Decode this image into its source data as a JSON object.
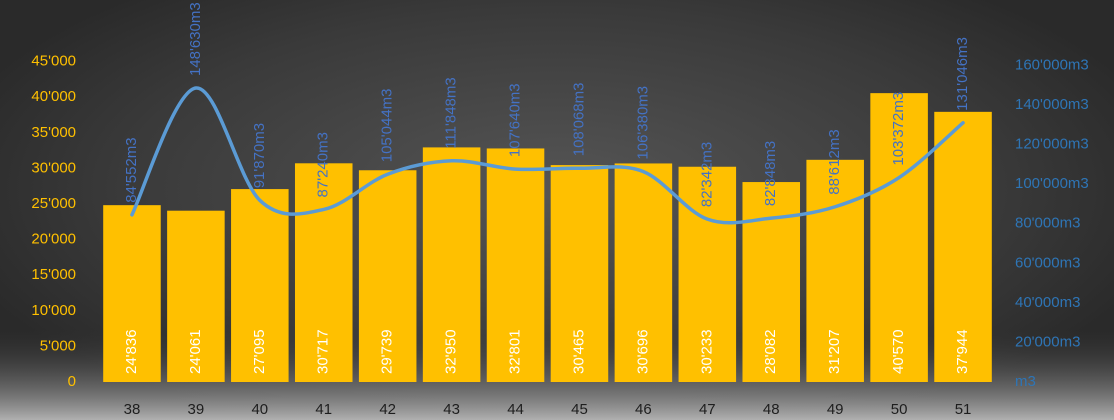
{
  "chart_data": {
    "type": "bar-line",
    "categories": [
      "38",
      "39",
      "40",
      "41",
      "42",
      "43",
      "44",
      "45",
      "46",
      "47",
      "48",
      "49",
      "50",
      "51"
    ],
    "series": [
      {
        "type": "bar",
        "color": "#ffc000",
        "axis": "y",
        "values": [
          24836,
          24061,
          27095,
          30717,
          29739,
          32950,
          32801,
          30465,
          30696,
          30233,
          28082,
          31207,
          40570,
          37944
        ],
        "value_labels": [
          "24'836",
          "24'061",
          "27'095",
          "30'717",
          "29'739",
          "32'950",
          "32'801",
          "30'465",
          "30'696",
          "30'233",
          "28'082",
          "31'207",
          "40'570",
          "37'944"
        ]
      },
      {
        "type": "line",
        "color": "#5b9bd5",
        "axis": "y2",
        "values": [
          84552,
          148630,
          91870,
          87240,
          105044,
          111848,
          107640,
          108068,
          106380,
          82342,
          82848,
          88612,
          103372,
          131046
        ],
        "value_labels": [
          "84'552m3",
          "148'630m3",
          "91'870m3",
          "87'240m3",
          "105'044m3",
          "111'848m3",
          "107'640m3",
          "108'068m3",
          "106'380m3",
          "82'342m3",
          "82'848m3",
          "88'612m3",
          "103'372m3",
          "131'046m3"
        ]
      }
    ],
    "ylim": [
      0,
      50000
    ],
    "yticks": [
      0,
      {
        "value": 5000,
        "label": "5'000"
      },
      {
        "value": 10000,
        "label": "10'000"
      },
      {
        "value": 15000,
        "label": "15'000"
      },
      {
        "value": 20000,
        "label": "20'000"
      },
      {
        "value": 25000,
        "label": "25'000"
      },
      {
        "value": 30000,
        "label": "30'000"
      },
      {
        "value": 35000,
        "label": "35'000"
      },
      {
        "value": 40000,
        "label": "40'000"
      },
      {
        "value": 45000,
        "label": "45'000"
      }
    ],
    "y2lim": [
      0,
      180000
    ],
    "y2ticks": [
      {
        "value": 0,
        "label": "m3"
      },
      {
        "value": 20000,
        "label": "20'000m3"
      },
      {
        "value": 40000,
        "label": "40'000m3"
      },
      {
        "value": 60000,
        "label": "60'000m3"
      },
      {
        "value": 80000,
        "label": "80'000m3"
      },
      {
        "value": 100000,
        "label": "100'000m3"
      },
      {
        "value": 120000,
        "label": "120'000m3"
      },
      {
        "value": 140000,
        "label": "140'000m3"
      },
      {
        "value": 160000,
        "label": "160'000m3"
      }
    ],
    "grid": false
  }
}
